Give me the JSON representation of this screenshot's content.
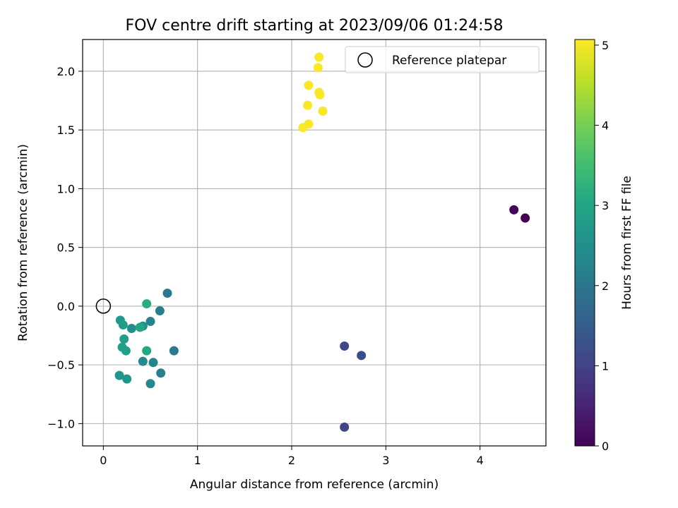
{
  "chart_data": {
    "type": "scatter",
    "title": "FOV centre drift starting at 2023/09/06 01:24:58",
    "xlabel": "Angular distance from reference (arcmin)",
    "ylabel": "Rotation from reference (arcmin)",
    "xlim": [
      -0.22,
      4.7
    ],
    "ylim": [
      -1.19,
      2.27
    ],
    "xticks": [
      0,
      1,
      2,
      3,
      4
    ],
    "yticks": [
      -1.0,
      -0.5,
      0.0,
      0.5,
      1.0,
      1.5,
      2.0
    ],
    "xtick_labels": [
      "0",
      "1",
      "2",
      "3",
      "4"
    ],
    "ytick_labels": [
      "−1.0",
      "−0.5",
      "0.0",
      "0.5",
      "1.0",
      "1.5",
      "2.0"
    ],
    "grid": true,
    "legend": {
      "position": "top-right",
      "entries": [
        {
          "label": "Reference platepar",
          "marker": "open-circle"
        }
      ]
    },
    "reference_point": {
      "x": 0,
      "y": 0
    },
    "colorbar": {
      "label": "Hours from first FF file",
      "colormap": "viridis",
      "range": [
        0,
        5.07
      ],
      "ticks": [
        0,
        1,
        2,
        3,
        4,
        5
      ],
      "tick_labels": [
        "0",
        "1",
        "2",
        "3",
        "4",
        "5"
      ]
    },
    "points": [
      {
        "x": 4.48,
        "y": 0.75,
        "hours": 0.0
      },
      {
        "x": 4.36,
        "y": 0.82,
        "hours": 0.05
      },
      {
        "x": 2.56,
        "y": -1.03,
        "hours": 1.05
      },
      {
        "x": 2.56,
        "y": -0.34,
        "hours": 1.1
      },
      {
        "x": 2.74,
        "y": -0.42,
        "hours": 1.15
      },
      {
        "x": 0.68,
        "y": 0.11,
        "hours": 2.0
      },
      {
        "x": 0.75,
        "y": -0.38,
        "hours": 2.05
      },
      {
        "x": 0.6,
        "y": -0.04,
        "hours": 2.15
      },
      {
        "x": 0.61,
        "y": -0.57,
        "hours": 2.2
      },
      {
        "x": 0.5,
        "y": -0.13,
        "hours": 2.3
      },
      {
        "x": 0.53,
        "y": -0.48,
        "hours": 2.3
      },
      {
        "x": 0.5,
        "y": -0.66,
        "hours": 2.35
      },
      {
        "x": 0.42,
        "y": -0.47,
        "hours": 2.4
      },
      {
        "x": 0.3,
        "y": -0.19,
        "hours": 2.45
      },
      {
        "x": 0.42,
        "y": -0.17,
        "hours": 2.5
      },
      {
        "x": 0.17,
        "y": -0.59,
        "hours": 2.65
      },
      {
        "x": 0.25,
        "y": -0.62,
        "hours": 2.65
      },
      {
        "x": 0.18,
        "y": -0.12,
        "hours": 2.7
      },
      {
        "x": 0.21,
        "y": -0.16,
        "hours": 2.8
      },
      {
        "x": 0.22,
        "y": -0.28,
        "hours": 2.8
      },
      {
        "x": 0.2,
        "y": -0.35,
        "hours": 2.85
      },
      {
        "x": 0.24,
        "y": -0.38,
        "hours": 2.85
      },
      {
        "x": 0.39,
        "y": -0.18,
        "hours": 2.95
      },
      {
        "x": 0.46,
        "y": -0.38,
        "hours": 3.05
      },
      {
        "x": 0.46,
        "y": 0.02,
        "hours": 3.1
      },
      {
        "x": 2.29,
        "y": 2.12,
        "hours": 5.05
      },
      {
        "x": 2.28,
        "y": 2.03,
        "hours": 5.05
      },
      {
        "x": 2.18,
        "y": 1.88,
        "hours": 5.05
      },
      {
        "x": 2.29,
        "y": 1.82,
        "hours": 5.05
      },
      {
        "x": 2.3,
        "y": 1.8,
        "hours": 5.05
      },
      {
        "x": 2.17,
        "y": 1.71,
        "hours": 5.05
      },
      {
        "x": 2.33,
        "y": 1.66,
        "hours": 5.05
      },
      {
        "x": 2.18,
        "y": 1.55,
        "hours": 5.05
      },
      {
        "x": 2.12,
        "y": 1.52,
        "hours": 5.05
      }
    ]
  }
}
